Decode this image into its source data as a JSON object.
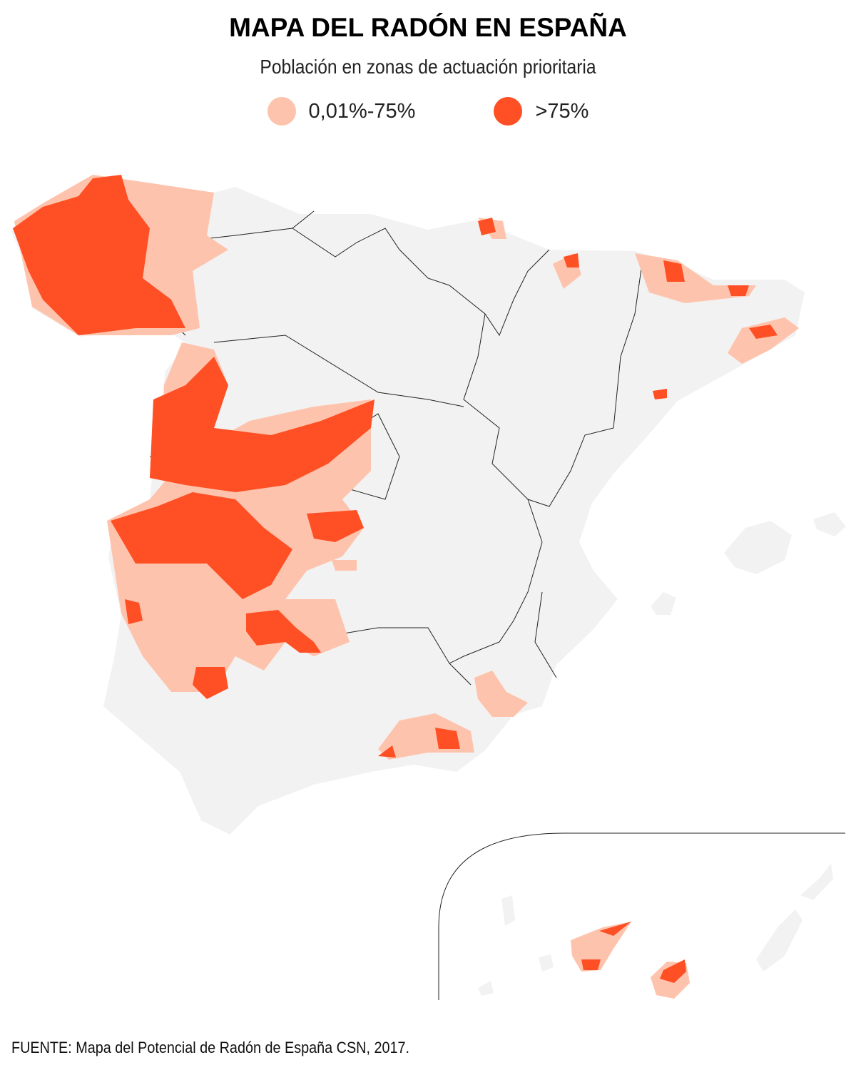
{
  "title": "MAPA DEL RADÓN EN ESPAÑA",
  "subtitle": "Población en zonas de actuación prioritaria",
  "legend": [
    {
      "label": "0,01%-75%",
      "color": "#fec3ad"
    },
    {
      "label": ">75%",
      "color": "#ff4f24"
    }
  ],
  "colors": {
    "land": "#f2f2f2",
    "border": "#222222",
    "low": "#fec3ad",
    "high": "#ff4f24"
  },
  "source": "FUENTE: Mapa del Potencial de Radón de España CSN, 2017."
}
